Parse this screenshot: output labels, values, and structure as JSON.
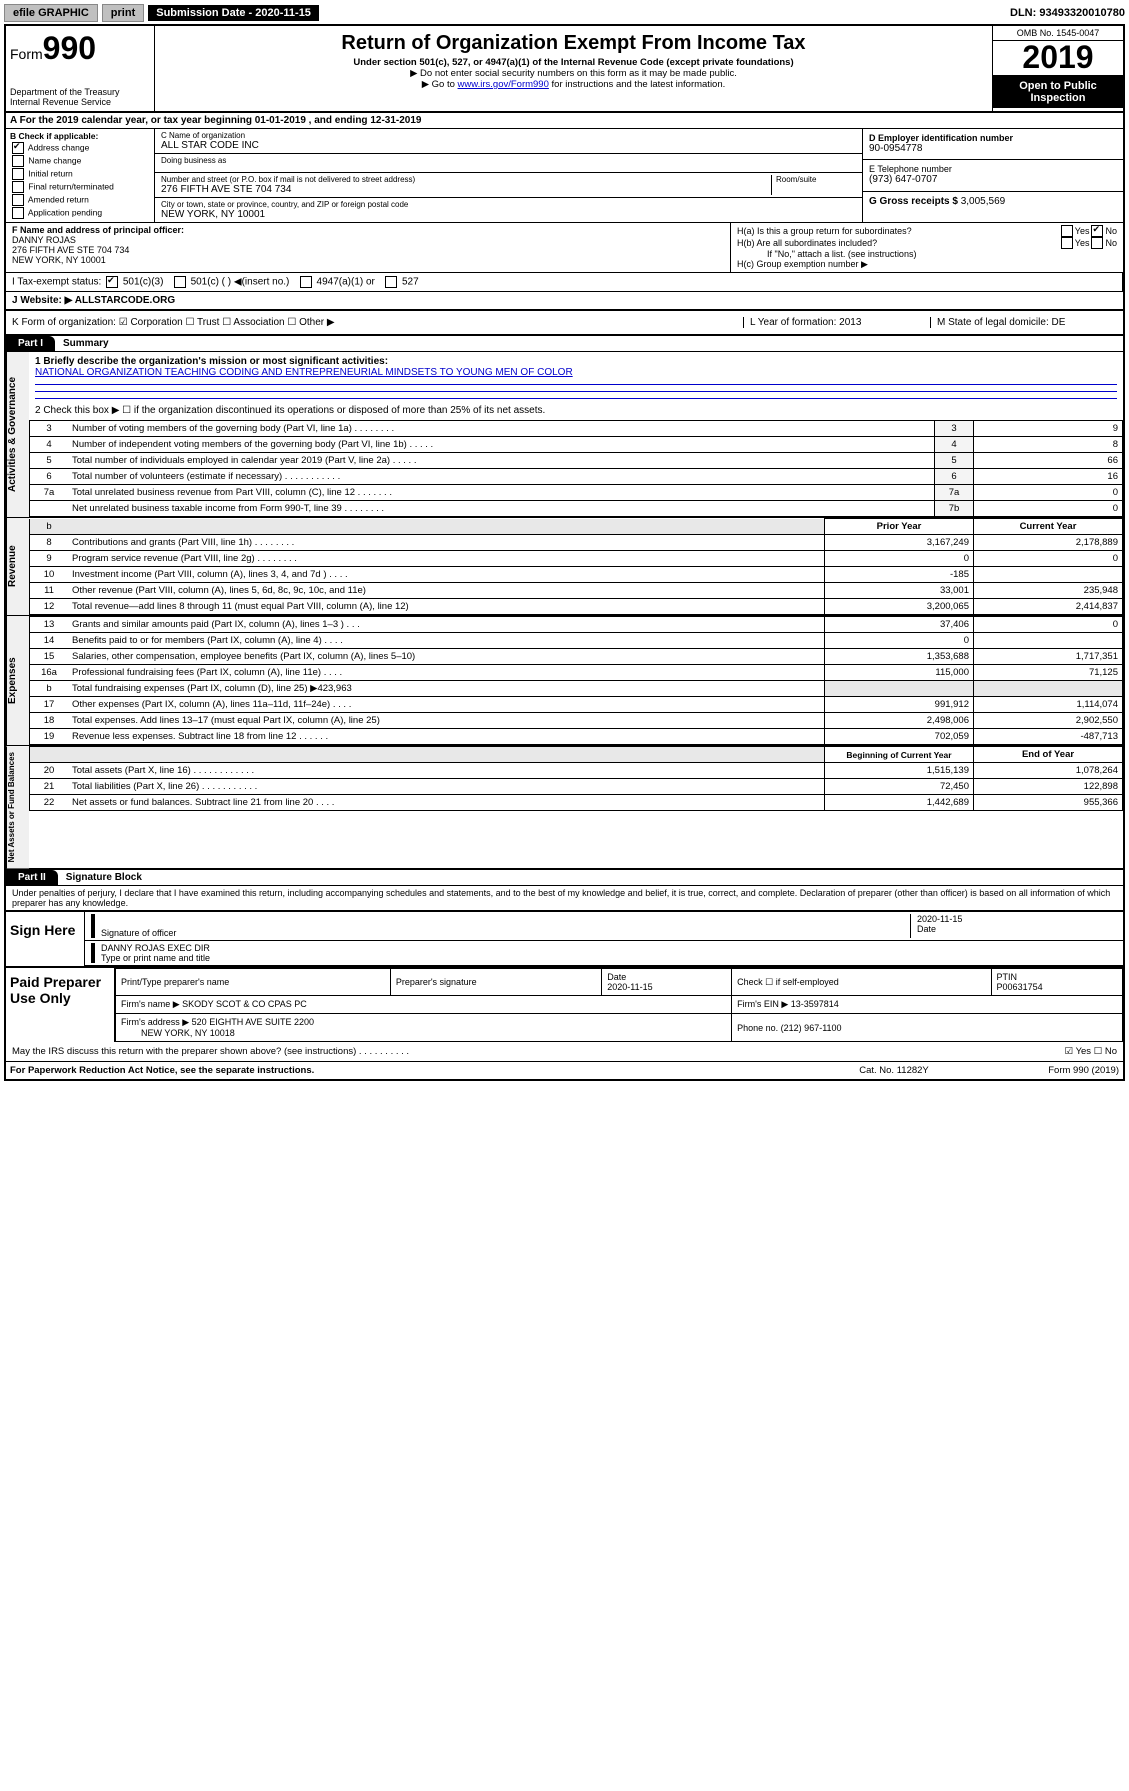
{
  "topbar": {
    "efile": "efile GRAPHIC",
    "print": "print",
    "sub_label": "Submission Date - 2020-11-15",
    "dln": "DLN: 93493320010780"
  },
  "header": {
    "form_prefix": "Form",
    "form_number": "990",
    "dept1": "Department of the Treasury",
    "dept2": "Internal Revenue Service",
    "title": "Return of Organization Exempt From Income Tax",
    "sub1": "Under section 501(c), 527, or 4947(a)(1) of the Internal Revenue Code (except private foundations)",
    "sub2": "▶ Do not enter social security numbers on this form as it may be made public.",
    "sub3_pre": "▶ Go to ",
    "sub3_link": "www.irs.gov/Form990",
    "sub3_post": " for instructions and the latest information.",
    "omb": "OMB No. 1545-0047",
    "year": "2019",
    "open": "Open to Public Inspection"
  },
  "row_a": "A For the 2019 calendar year, or tax year beginning 01-01-2019   , and ending 12-31-2019",
  "box_b": {
    "label": "B Check if applicable:",
    "items": [
      "Address change",
      "Name change",
      "Initial return",
      "Final return/terminated",
      "Amended return",
      "Application pending"
    ],
    "checked": [
      true,
      false,
      false,
      false,
      false,
      false
    ]
  },
  "box_c": {
    "name_label": "C Name of organization",
    "name": "ALL STAR CODE INC",
    "dba_label": "Doing business as",
    "dba": "",
    "addr_label": "Number and street (or P.O. box if mail is not delivered to street address)",
    "room_label": "Room/suite",
    "addr": "276 FIFTH AVE STE 704 734",
    "city_label": "City or town, state or province, country, and ZIP or foreign postal code",
    "city": "NEW YORK, NY  10001"
  },
  "box_d": {
    "label": "D Employer identification number",
    "val": "90-0954778"
  },
  "box_e": {
    "label": "E Telephone number",
    "val": "(973) 647-0707"
  },
  "box_g": {
    "label": "G Gross receipts $",
    "val": "3,005,569"
  },
  "box_f": {
    "label": "F  Name and address of principal officer:",
    "name": "DANNY ROJAS",
    "addr1": "276 FIFTH AVE STE 704 734",
    "addr2": "NEW YORK, NY  10001"
  },
  "box_h": {
    "ha": "H(a)  Is this a group return for subordinates?",
    "hb": "H(b)  Are all subordinates included?",
    "hb_note": "If \"No,\" attach a list. (see instructions)",
    "hc": "H(c)  Group exemption number ▶",
    "ha_no": true
  },
  "row_i": {
    "label": "I   Tax-exempt status:",
    "opts": [
      "501(c)(3)",
      "501(c) (  ) ◀(insert no.)",
      "4947(a)(1) or",
      "527"
    ],
    "checked": [
      true,
      false,
      false,
      false
    ]
  },
  "row_j": {
    "label": "J   Website: ▶",
    "val": "ALLSTARCODE.ORG"
  },
  "row_k": "K Form of organization:  ☑ Corporation  ☐ Trust  ☐ Association  ☐ Other ▶",
  "row_l": "L Year of formation: 2013",
  "row_m": "M State of legal domicile: DE",
  "part1": {
    "tab": "Part I",
    "title": "Summary",
    "q1_label": "1  Briefly describe the organization's mission or most significant activities:",
    "q1_val": "NATIONAL ORGANIZATION TEACHING CODING AND ENTREPRENEURIAL MINDSETS TO YOUNG MEN OF COLOR",
    "q2": "2   Check this box ▶ ☐  if the organization discontinued its operations or disposed of more than 25% of its net assets.",
    "lines_gov": [
      {
        "n": "3",
        "desc": "Number of voting members of the governing body (Part VI, line 1a)  .    .    .    .    .    .    .    .",
        "box": "3",
        "val": "9"
      },
      {
        "n": "4",
        "desc": "Number of independent voting members of the governing body (Part VI, line 1b)  .    .    .    .    .",
        "box": "4",
        "val": "8"
      },
      {
        "n": "5",
        "desc": "Total number of individuals employed in calendar year 2019 (Part V, line 2a)  .    .    .    .    .",
        "box": "5",
        "val": "66"
      },
      {
        "n": "6",
        "desc": "Total number of volunteers (estimate if necessary)  .    .    .    .    .    .    .    .    .    .    .",
        "box": "6",
        "val": "16"
      },
      {
        "n": "7a",
        "desc": "Total unrelated business revenue from Part VIII, column (C), line 12  .    .    .    .    .    .    .",
        "box": "7a",
        "val": "0"
      },
      {
        "n": "",
        "desc": "Net unrelated business taxable income from Form 990-T, line 39  .    .    .    .    .    .    .    .",
        "box": "7b",
        "val": "0"
      }
    ],
    "col_hdr_prior": "Prior Year",
    "col_hdr_curr": "Current Year",
    "lines_rev": [
      {
        "n": "8",
        "desc": "Contributions and grants (Part VIII, line 1h)  .    .    .    .    .    .    .    .",
        "p": "3,167,249",
        "c": "2,178,889"
      },
      {
        "n": "9",
        "desc": "Program service revenue (Part VIII, line 2g)  .    .    .    .    .    .    .    .",
        "p": "0",
        "c": "0"
      },
      {
        "n": "10",
        "desc": "Investment income (Part VIII, column (A), lines 3, 4, and 7d )  .    .    .    .",
        "p": "-185",
        "c": ""
      },
      {
        "n": "11",
        "desc": "Other revenue (Part VIII, column (A), lines 5, 6d, 8c, 9c, 10c, and 11e)",
        "p": "33,001",
        "c": "235,948"
      },
      {
        "n": "12",
        "desc": "Total revenue—add lines 8 through 11 (must equal Part VIII, column (A), line 12)",
        "p": "3,200,065",
        "c": "2,414,837"
      }
    ],
    "lines_exp": [
      {
        "n": "13",
        "desc": "Grants and similar amounts paid (Part IX, column (A), lines 1–3 )  .    .    .",
        "p": "37,406",
        "c": "0"
      },
      {
        "n": "14",
        "desc": "Benefits paid to or for members (Part IX, column (A), line 4)  .    .    .    .",
        "p": "0",
        "c": ""
      },
      {
        "n": "15",
        "desc": "Salaries, other compensation, employee benefits (Part IX, column (A), lines 5–10)",
        "p": "1,353,688",
        "c": "1,717,351"
      },
      {
        "n": "16a",
        "desc": "Professional fundraising fees (Part IX, column (A), line 11e)  .    .    .    .",
        "p": "115,000",
        "c": "71,125"
      },
      {
        "n": "b",
        "desc": "Total fundraising expenses (Part IX, column (D), line 25) ▶423,963",
        "p": "shade",
        "c": "shade"
      },
      {
        "n": "17",
        "desc": "Other expenses (Part IX, column (A), lines 11a–11d, 11f–24e)  .    .    .    .",
        "p": "991,912",
        "c": "1,114,074"
      },
      {
        "n": "18",
        "desc": "Total expenses. Add lines 13–17 (must equal Part IX, column (A), line 25)",
        "p": "2,498,006",
        "c": "2,902,550"
      },
      {
        "n": "19",
        "desc": "Revenue less expenses. Subtract line 18 from line 12  .    .    .    .    .    .",
        "p": "702,059",
        "c": "-487,713"
      }
    ],
    "col_hdr_beg": "Beginning of Current Year",
    "col_hdr_end": "End of Year",
    "lines_net": [
      {
        "n": "20",
        "desc": "Total assets (Part X, line 16)  .    .    .    .    .    .    .    .    .    .    .    .",
        "p": "1,515,139",
        "c": "1,078,264"
      },
      {
        "n": "21",
        "desc": "Total liabilities (Part X, line 26)  .    .    .    .    .    .    .    .    .    .    .",
        "p": "72,450",
        "c": "122,898"
      },
      {
        "n": "22",
        "desc": "Net assets or fund balances. Subtract line 21 from line 20  .    .    .    .",
        "p": "1,442,689",
        "c": "955,366"
      }
    ]
  },
  "part2": {
    "tab": "Part II",
    "title": "Signature Block",
    "perjury": "Under penalties of perjury, I declare that I have examined this return, including accompanying schedules and statements, and to the best of my knowledge and belief, it is true, correct, and complete. Declaration of preparer (other than officer) is based on all information of which preparer has any knowledge."
  },
  "sign": {
    "here": "Sign Here",
    "sig_label": "Signature of officer",
    "date": "2020-11-15",
    "date_label": "Date",
    "name": "DANNY ROJAS  EXEC DIR",
    "name_label": "Type or print name and title"
  },
  "paid": {
    "label": "Paid Preparer Use Only",
    "h1": "Print/Type preparer's name",
    "h2": "Preparer's signature",
    "h3": "Date",
    "h4": "Check ☐ if self-employed",
    "h5": "PTIN",
    "date": "2020-11-15",
    "ptin": "P00631754",
    "firm_label": "Firm's name    ▶",
    "firm": "SKODY SCOT & CO CPAS PC",
    "ein_label": "Firm's EIN ▶",
    "ein": "13-3597814",
    "addr_label": "Firm's address ▶",
    "addr1": "520 EIGHTH AVE SUITE 2200",
    "addr2": "NEW YORK, NY  10018",
    "phone_label": "Phone no.",
    "phone": "(212) 967-1100"
  },
  "discuss": "May the IRS discuss this return with the preparer shown above? (see instructions)   .    .    .    .    .    .    .    .    .    .",
  "discuss_yes": "☑ Yes   ☐ No",
  "footer": {
    "left": "For Paperwork Reduction Act Notice, see the separate instructions.",
    "center": "Cat. No. 11282Y",
    "right": "Form 990 (2019)"
  },
  "vtabs": {
    "gov": "Activities & Governance",
    "rev": "Revenue",
    "exp": "Expenses",
    "net": "Net Assets or Fund Balances"
  }
}
